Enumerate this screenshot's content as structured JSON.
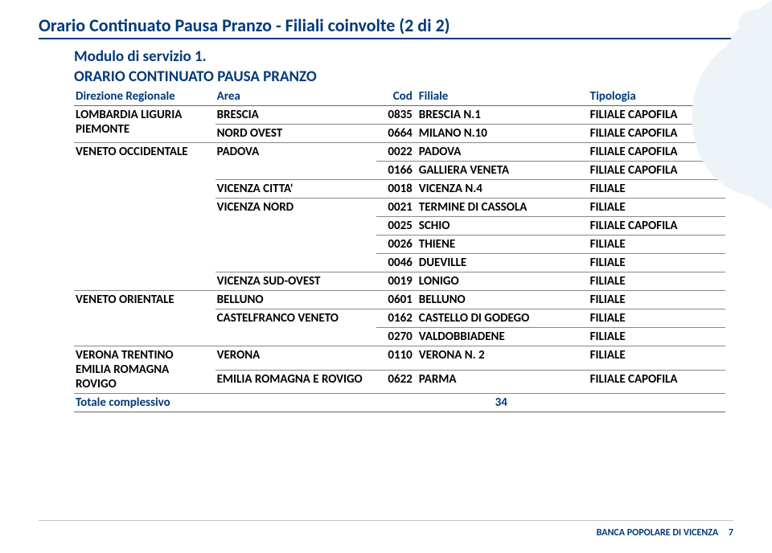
{
  "title": "Orario Continuato Pausa Pranzo - Filiali coinvolte (2 di 2)",
  "modulo_line": "Modulo di servizio 1.",
  "subtitle": "ORARIO CONTINUATO PAUSA PRANZO",
  "columns": {
    "dir": "Direzione Regionale",
    "area": "Area",
    "cod": "Cod",
    "fil": "Filiale",
    "tip": "Tipologia"
  },
  "rows": [
    {
      "dir": "LOMBARDIA LIGURIA PIEMONTE",
      "area": "BRESCIA",
      "cod": "0835",
      "fil": "BRESCIA N.1",
      "tip": "FILIALE CAPOFILA",
      "dir_rowspan": 2
    },
    {
      "area": "NORD OVEST",
      "cod": "0664",
      "fil": "MILANO N.10",
      "tip": "FILIALE CAPOFILA"
    },
    {
      "dir": "VENETO OCCIDENTALE",
      "area": "PADOVA",
      "cod": "0022",
      "fil": "PADOVA",
      "tip": "FILIALE CAPOFILA",
      "dir_rowspan": 8,
      "area_rowspan": 2
    },
    {
      "cod": "0166",
      "fil": "GALLIERA VENETA",
      "tip": "FILIALE CAPOFILA"
    },
    {
      "area": "VICENZA CITTA'",
      "cod": "0018",
      "fil": "VICENZA N.4",
      "tip": "FILIALE"
    },
    {
      "area": "VICENZA NORD",
      "cod": "0021",
      "fil": "TERMINE DI CASSOLA",
      "tip": "FILIALE",
      "area_rowspan": 4
    },
    {
      "cod": "0025",
      "fil": "SCHIO",
      "tip": "FILIALE CAPOFILA"
    },
    {
      "cod": "0026",
      "fil": "THIENE",
      "tip": "FILIALE"
    },
    {
      "cod": "0046",
      "fil": "DUEVILLE",
      "tip": "FILIALE"
    },
    {
      "area": "VICENZA SUD-OVEST",
      "cod": "0019",
      "fil": "LONIGO",
      "tip": "FILIALE"
    },
    {
      "dir": "VENETO ORIENTALE",
      "area": "BELLUNO",
      "cod": "0601",
      "fil": "BELLUNO",
      "tip": "FILIALE",
      "dir_rowspan": 3
    },
    {
      "area": "CASTELFRANCO VENETO",
      "cod": "0162",
      "fil": "CASTELLO DI GODEGO",
      "tip": "FILIALE",
      "area_rowspan": 2
    },
    {
      "cod": "0270",
      "fil": "VALDOBBIADENE",
      "tip": "FILIALE"
    },
    {
      "dir": "VERONA TRENTINO EMILIA ROMAGNA ROVIGO",
      "area": "VERONA",
      "cod": "0110",
      "fil": "VERONA N. 2",
      "tip": "FILIALE",
      "dir_rowspan": 2
    },
    {
      "area": "EMILIA ROMAGNA E ROVIGO",
      "cod": "0622",
      "fil": "PARMA",
      "tip": "FILIALE CAPOFILA"
    }
  ],
  "total_label": "Totale complessivo",
  "total_count": "34",
  "footer_bank": "BANCA POPOLARE DI VICENZA",
  "footer_page": "7",
  "colors": {
    "brand": "#003a7a",
    "rule": "#666666",
    "row_rule": "#888888",
    "watermark": "#e8eef5"
  }
}
